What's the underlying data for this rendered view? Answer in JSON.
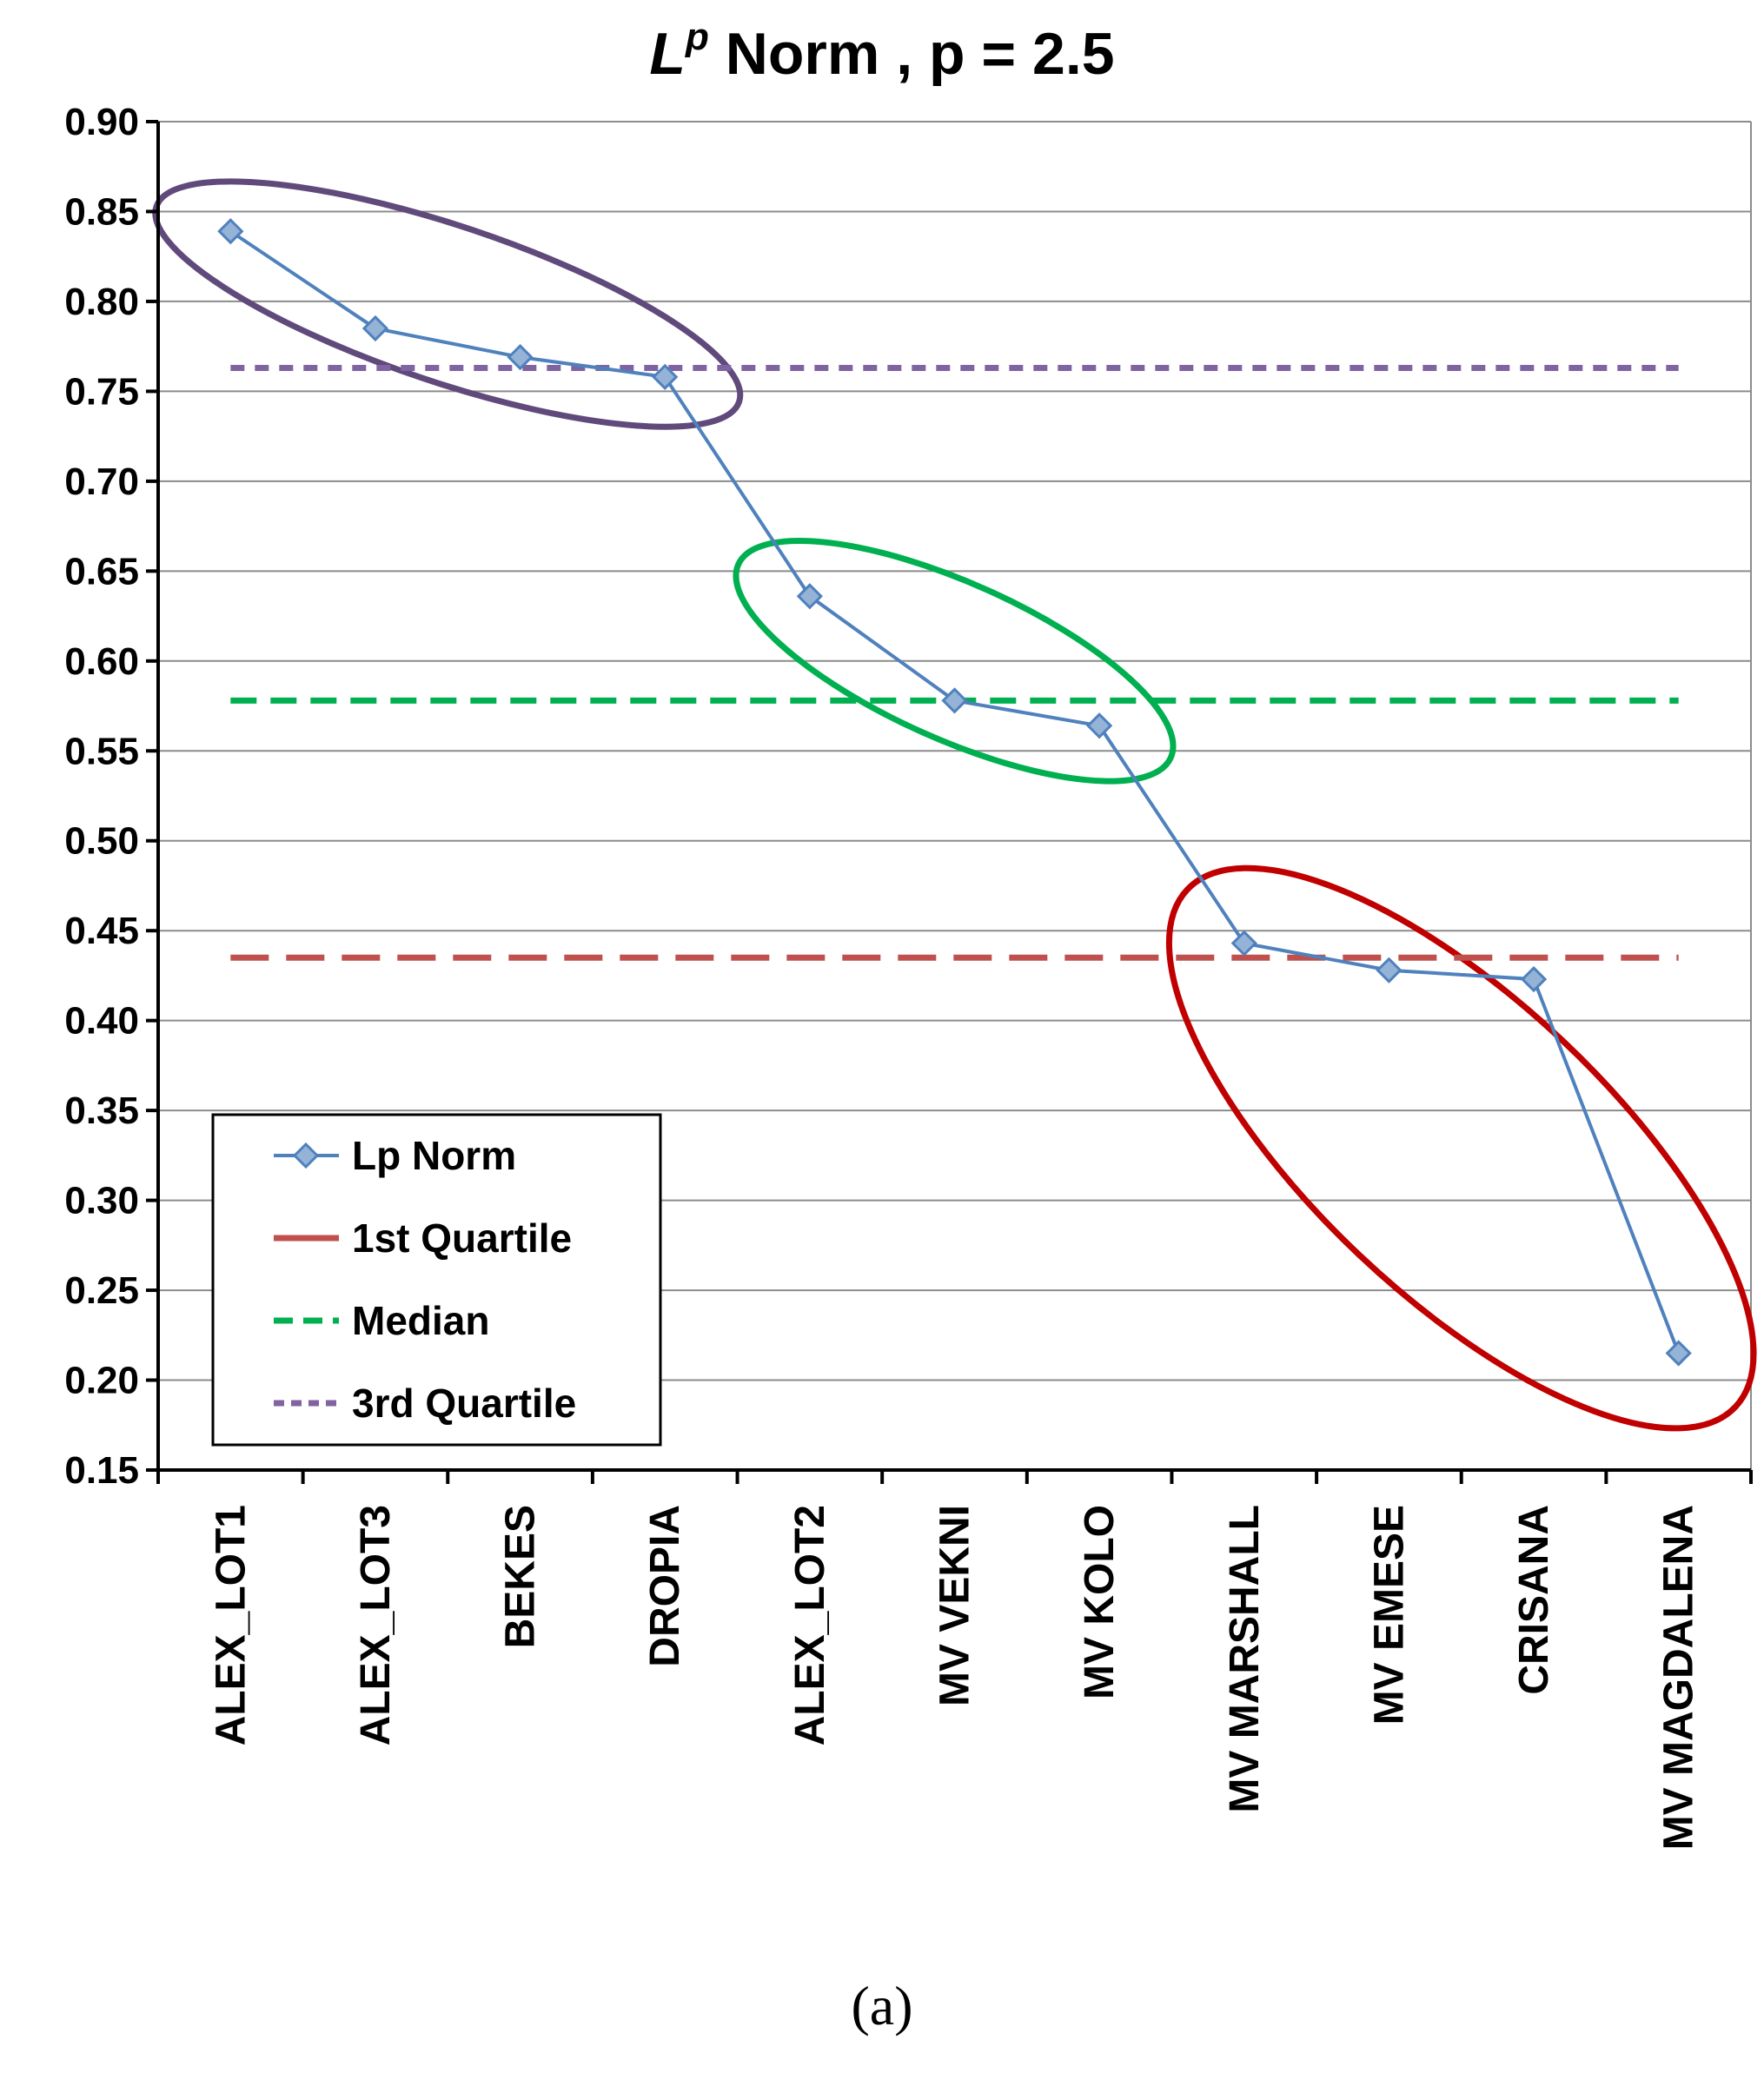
{
  "chart_data": {
    "type": "line",
    "title": {
      "main": "L",
      "superscript": "p",
      "rest": " Norm , p = 2.5"
    },
    "caption": "(a)",
    "xlabel": "",
    "ylabel": "",
    "ylim": [
      0.15,
      0.9
    ],
    "ytick_step": 0.05,
    "yticks": [
      "0.15",
      "0.20",
      "0.25",
      "0.30",
      "0.35",
      "0.40",
      "0.45",
      "0.50",
      "0.55",
      "0.60",
      "0.65",
      "0.70",
      "0.75",
      "0.80",
      "0.85",
      "0.90"
    ],
    "grid": true,
    "categories": [
      "ALEX_LOT1",
      "ALEX_LOT3",
      "BEKES",
      "DROPIA",
      "ALEX_LOT2",
      "MV VEKNI",
      "MV KOLO",
      "MV MARSHALL",
      "MV EMESE",
      "CRISANA",
      "MV MAGDALENA"
    ],
    "series": [
      {
        "name": "Lp Norm",
        "style": "line-marker",
        "color": "#4F81BD",
        "values": [
          0.839,
          0.785,
          0.769,
          0.758,
          0.636,
          0.578,
          0.564,
          0.443,
          0.428,
          0.423,
          0.215
        ]
      },
      {
        "name": "1st Quartile",
        "style": "dash-long",
        "color": "#C0504D",
        "value": 0.435
      },
      {
        "name": "Median",
        "style": "dash",
        "color": "#00B050",
        "value": 0.578
      },
      {
        "name": "3rd Quartile",
        "style": "dash-short",
        "color": "#8064A2",
        "value": 0.763
      }
    ],
    "legend": {
      "position": "bottom-left",
      "entries": [
        "Lp Norm",
        "1st Quartile",
        "Median",
        "3rd Quartile"
      ]
    },
    "annotations": [
      {
        "type": "ellipse",
        "color": "#604A7B",
        "covers": [
          "ALEX_LOT1",
          "ALEX_LOT3",
          "BEKES",
          "DROPIA"
        ]
      },
      {
        "type": "ellipse",
        "color": "#00B050",
        "covers": [
          "ALEX_LOT2",
          "MV VEKNI",
          "MV KOLO"
        ]
      },
      {
        "type": "ellipse",
        "color": "#C00000",
        "covers": [
          "MV MARSHALL",
          "MV EMESE",
          "CRISANA",
          "MV MAGDALENA"
        ]
      }
    ]
  }
}
